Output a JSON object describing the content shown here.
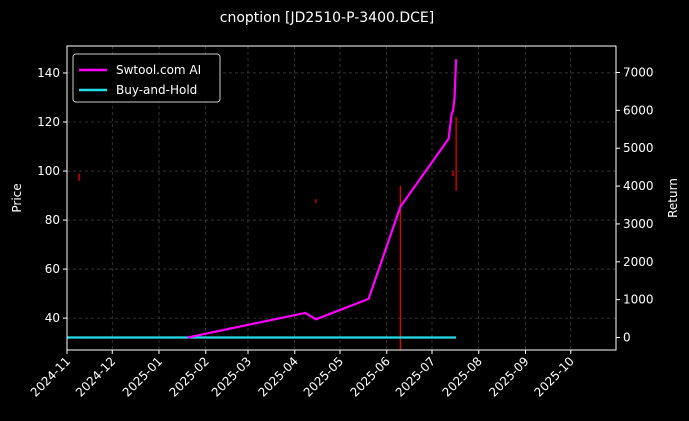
{
  "chart_data": {
    "type": "line",
    "title": "cnoption [JD2510-P-3400.DCE]",
    "xlabel": "",
    "ylabel_left": "Price",
    "ylabel_right": "Return",
    "x_range": [
      "2024-11-01",
      "2025-10-31"
    ],
    "x_ticks": [
      "2024-11",
      "2024-12",
      "2025-01",
      "2025-02",
      "2025-03",
      "2025-04",
      "2025-05",
      "2025-06",
      "2025-07",
      "2025-08",
      "2025-09",
      "2025-10"
    ],
    "y_left_range": [
      27,
      151
    ],
    "y_left_ticks": [
      40,
      60,
      80,
      100,
      120,
      140
    ],
    "y_right_range": [
      -330,
      7700
    ],
    "y_right_ticks": [
      0,
      1000,
      2000,
      3000,
      4000,
      5000,
      6000,
      7000
    ],
    "grid": true,
    "legend_position": "top-left",
    "series": [
      {
        "name": "Swtool.com AI",
        "axis": "right",
        "color": "#ff00ff",
        "points": [
          [
            "2025-01-20",
            0
          ],
          [
            "2025-02-01",
            100
          ],
          [
            "2025-04-08",
            650
          ],
          [
            "2025-04-15",
            480
          ],
          [
            "2025-05-20",
            1020
          ],
          [
            "2025-06-10",
            3450
          ],
          [
            "2025-07-12",
            5250
          ],
          [
            "2025-07-14",
            5900
          ],
          [
            "2025-07-15",
            6000
          ],
          [
            "2025-07-16",
            6350
          ],
          [
            "2025-07-17",
            7350
          ]
        ]
      },
      {
        "name": "Buy-and-Hold",
        "axis": "right",
        "color": "#22dde8",
        "points": [
          [
            "2024-11-01",
            0
          ],
          [
            "2025-07-17",
            0
          ]
        ]
      }
    ],
    "price_bars": {
      "axis": "left",
      "color": "#ff0000",
      "bars": [
        [
          "2024-11-01",
          101,
          104
        ],
        [
          "2024-11-09",
          96,
          99
        ],
        [
          "2025-04-15",
          87,
          88.5
        ],
        [
          "2025-06-10",
          27,
          94
        ],
        [
          "2025-07-15",
          98,
          100
        ],
        [
          "2025-07-17",
          92,
          122
        ]
      ]
    }
  }
}
